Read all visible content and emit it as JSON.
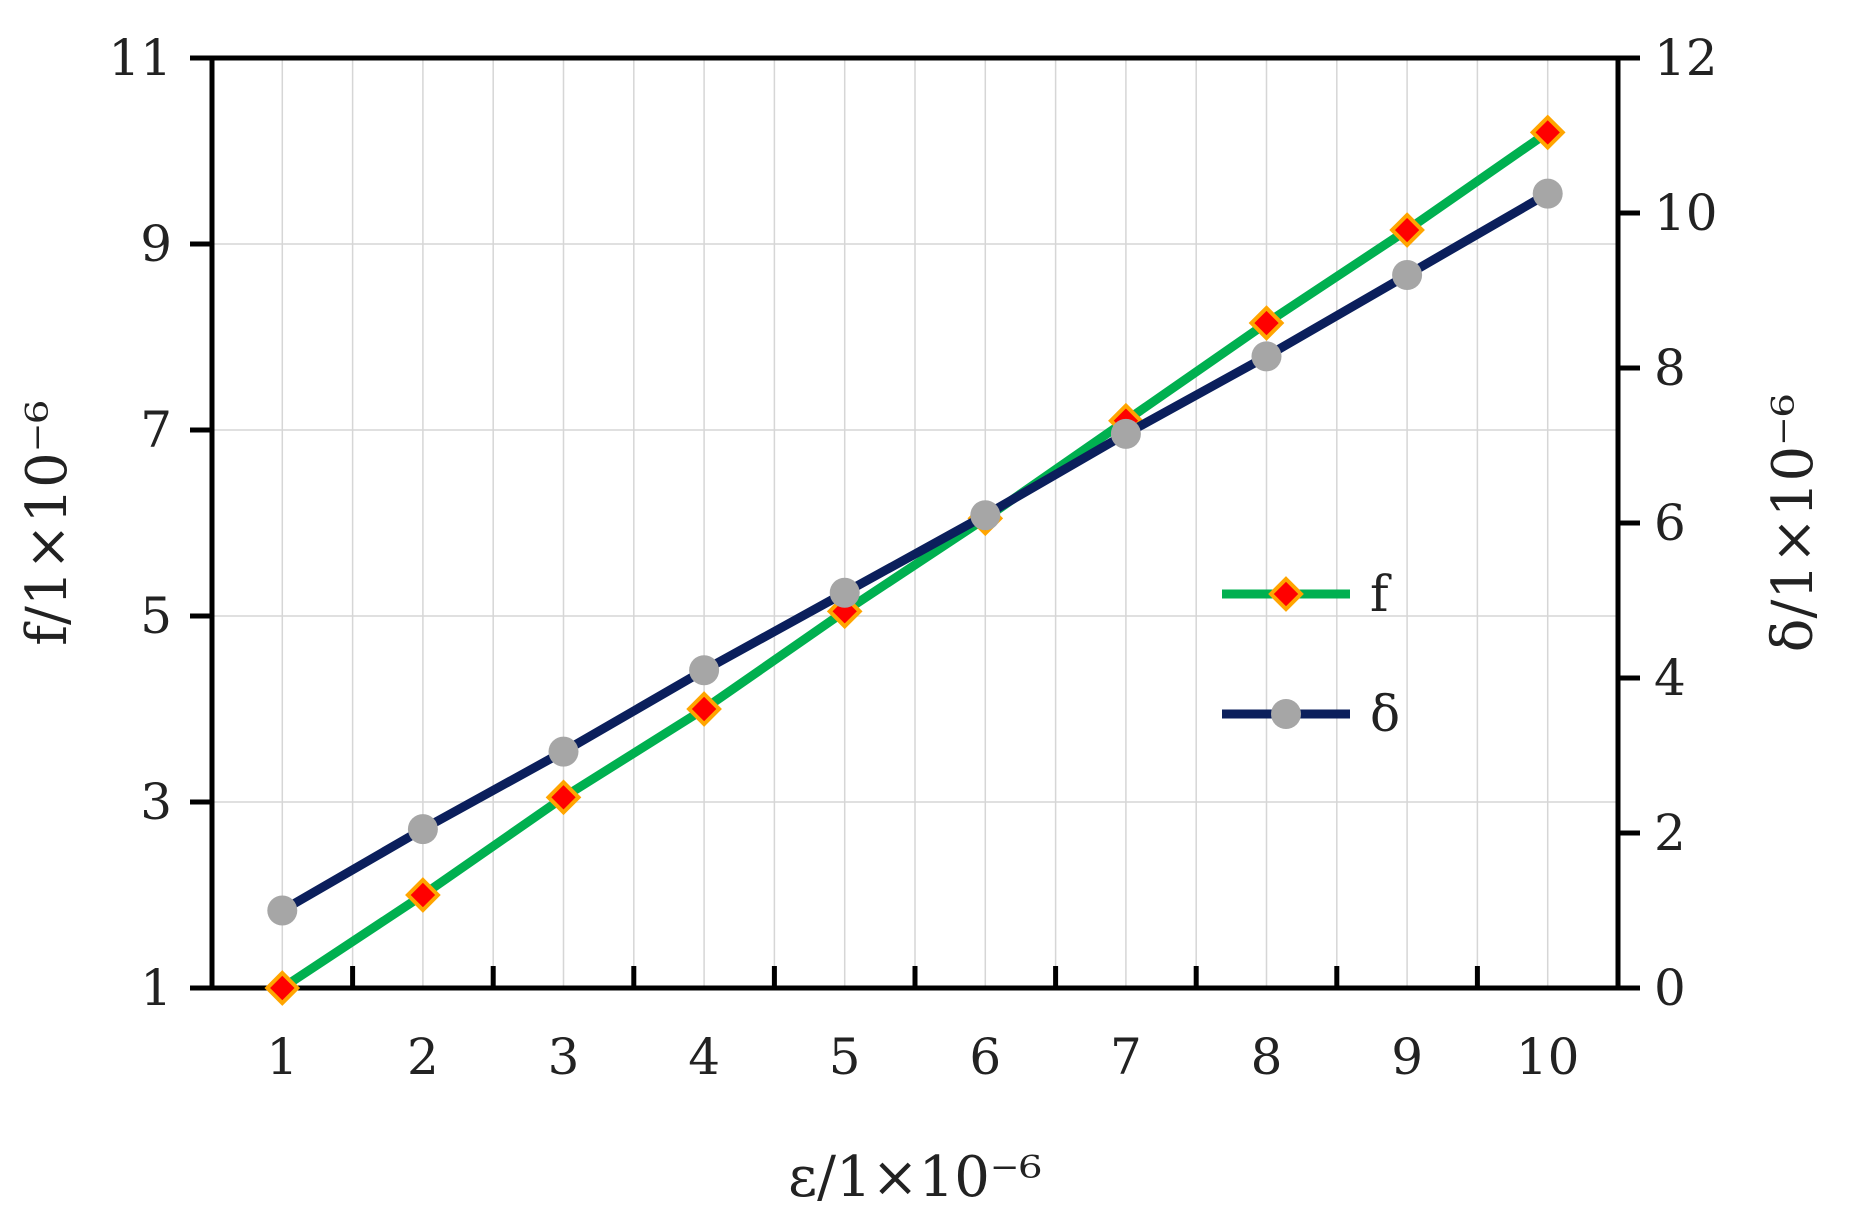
{
  "chart_data": {
    "type": "line",
    "x": [
      1,
      2,
      3,
      4,
      5,
      6,
      7,
      8,
      9,
      10
    ],
    "xlabel": "ε/1×10⁻⁶",
    "ylabel": "f/1×10⁻⁶",
    "y2label": "δ/1×10⁻⁶",
    "xlim": [
      0.5,
      10.5
    ],
    "ylim": [
      1,
      11
    ],
    "y2lim": [
      0,
      12
    ],
    "xticks": [
      1,
      2,
      3,
      4,
      5,
      6,
      7,
      8,
      9,
      10
    ],
    "yticks": [
      1,
      3,
      5,
      7,
      9,
      11
    ],
    "y2ticks": [
      0,
      2,
      4,
      6,
      8,
      10,
      12
    ],
    "grid": true,
    "legend_position": "center-right",
    "series": [
      {
        "name": "f",
        "axis": "left",
        "values": [
          1.0,
          2.0,
          3.05,
          4.0,
          5.05,
          6.05,
          7.1,
          8.15,
          9.15,
          10.2
        ],
        "line_color": "#00b050",
        "marker": "diamond",
        "marker_color": "#ff0000",
        "marker_edge": "#ffa500"
      },
      {
        "name": "δ",
        "axis": "right",
        "values": [
          1.0,
          2.05,
          3.05,
          4.1,
          5.1,
          6.1,
          7.15,
          8.15,
          9.2,
          10.25
        ],
        "line_color": "#0b1f5c",
        "marker": "circle",
        "marker_color": "#a6a6a6"
      }
    ]
  }
}
